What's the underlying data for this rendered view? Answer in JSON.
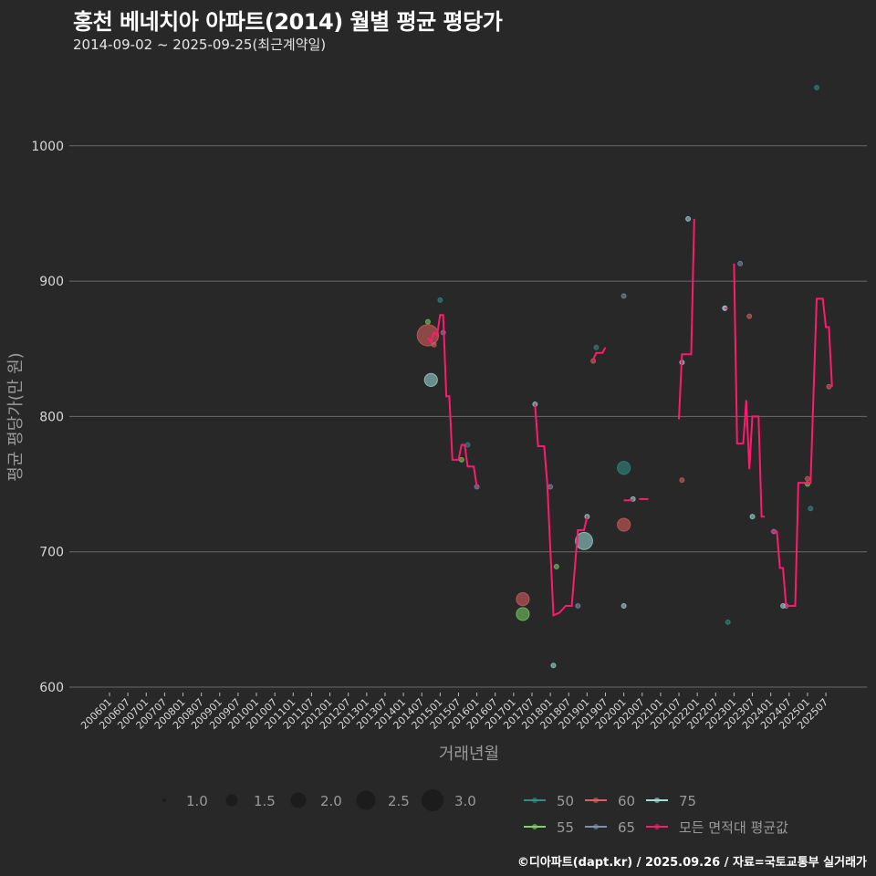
{
  "header": {
    "title": "홍천 베네치아 아파트(2014) 월별 평균 평당가",
    "subtitle": "2014-09-02 ~ 2025-09-25(최근계약일)"
  },
  "footer": {
    "credit": "©디아파트(dapt.kr) / 2025.09.26 / 자료=국토교통부 실거래가"
  },
  "colors": {
    "background": "#282828",
    "grid": "#6a6a6a",
    "area_50": "#2f8f86",
    "area_55": "#7ed36a",
    "area_60": "#e06060",
    "area_65": "#7f8fb0",
    "area_75": "#9fe0d8",
    "average_line": "#ff1a6e"
  },
  "chart_data": {
    "type": "line+scatter",
    "title": "홍천 베네치아 아파트(2014) 월별 평균 평당가",
    "subtitle": "2014-09-02 ~ 2025-09-25(최근계약일)",
    "xlabel": "거래년월",
    "ylabel": "평균 평당가(만 원)",
    "ylim": [
      590,
      1050
    ],
    "yticks": [
      600,
      700,
      800,
      900,
      1000
    ],
    "xticks": [
      "200601",
      "200607",
      "200701",
      "200707",
      "200801",
      "200807",
      "200901",
      "200907",
      "201001",
      "201007",
      "201101",
      "201107",
      "201201",
      "201207",
      "201301",
      "201307",
      "201401",
      "201407",
      "201501",
      "201507",
      "201601",
      "201607",
      "201701",
      "201707",
      "201801",
      "201807",
      "201901",
      "201907",
      "202001",
      "202007",
      "202101",
      "202107",
      "202201",
      "202207",
      "202301",
      "202307",
      "202401",
      "202407",
      "202501",
      "202507"
    ],
    "grid": true,
    "size_legend": {
      "title": "",
      "values": [
        1.0,
        1.5,
        2.0,
        2.5,
        3.0
      ]
    },
    "legend": [
      "50",
      "60",
      "75",
      "55",
      "65",
      "모든 면적대 평균값"
    ],
    "legend_position": "bottom",
    "series": [
      {
        "name": "50",
        "points": [
          {
            "x": "201501",
            "y": 886,
            "size": 1
          },
          {
            "x": "201510",
            "y": 779,
            "size": 1
          },
          {
            "x": "201904",
            "y": 851,
            "size": 1
          },
          {
            "x": "202001",
            "y": 762,
            "size": 2
          },
          {
            "x": "202211",
            "y": 648,
            "size": 1
          },
          {
            "x": "202502",
            "y": 732,
            "size": 1
          },
          {
            "x": "202504",
            "y": 1043,
            "size": 1
          }
        ]
      },
      {
        "name": "55",
        "points": [
          {
            "x": "201409",
            "y": 870,
            "size": 1
          },
          {
            "x": "201508",
            "y": 768,
            "size": 1
          },
          {
            "x": "201704",
            "y": 654,
            "size": 2
          },
          {
            "x": "201803",
            "y": 689,
            "size": 1
          },
          {
            "x": "202501",
            "y": 750,
            "size": 1
          }
        ]
      },
      {
        "name": "60",
        "points": [
          {
            "x": "201409",
            "y": 860,
            "size": 3
          },
          {
            "x": "201411",
            "y": 853,
            "size": 1
          },
          {
            "x": "201704",
            "y": 665,
            "size": 2
          },
          {
            "x": "201903",
            "y": 841,
            "size": 1
          },
          {
            "x": "202001",
            "y": 720,
            "size": 2
          },
          {
            "x": "202108",
            "y": 753,
            "size": 1
          },
          {
            "x": "202306",
            "y": 874,
            "size": 1
          },
          {
            "x": "202501",
            "y": 754,
            "size": 1
          },
          {
            "x": "202508",
            "y": 822,
            "size": 1
          }
        ]
      },
      {
        "name": "65",
        "points": [
          {
            "x": "201502",
            "y": 862,
            "size": 1
          },
          {
            "x": "201601",
            "y": 748,
            "size": 1
          },
          {
            "x": "201801",
            "y": 748,
            "size": 1
          },
          {
            "x": "201810",
            "y": 660,
            "size": 1
          },
          {
            "x": "202001",
            "y": 889,
            "size": 1
          },
          {
            "x": "202210",
            "y": 880,
            "size": 1
          },
          {
            "x": "202303",
            "y": 913,
            "size": 1
          },
          {
            "x": "202402",
            "y": 715,
            "size": 1
          },
          {
            "x": "202406",
            "y": 660,
            "size": 1
          }
        ]
      },
      {
        "name": "75",
        "points": [
          {
            "x": "201410",
            "y": 827,
            "size": 2
          },
          {
            "x": "201708",
            "y": 809,
            "size": 1
          },
          {
            "x": "201802",
            "y": 616,
            "size": 1
          },
          {
            "x": "201812",
            "y": 708,
            "size": 2.5
          },
          {
            "x": "201901",
            "y": 726,
            "size": 1
          },
          {
            "x": "202001",
            "y": 660,
            "size": 1
          },
          {
            "x": "202004",
            "y": 739,
            "size": 1
          },
          {
            "x": "202108",
            "y": 840,
            "size": 1
          },
          {
            "x": "202110",
            "y": 946,
            "size": 1
          },
          {
            "x": "202210",
            "y": 880,
            "size": 1
          },
          {
            "x": "202307",
            "y": 726,
            "size": 1
          },
          {
            "x": "202405",
            "y": 660,
            "size": 1
          }
        ]
      },
      {
        "name": "모든 면적대 평균값",
        "line_segments": [
          [
            [
              "201409",
              858
            ],
            [
              "201410",
              855
            ],
            [
              "201411",
              862
            ],
            [
              "201412",
              860
            ],
            [
              "201501",
              875
            ],
            [
              "201502",
              875
            ],
            [
              "201503",
              815
            ],
            [
              "201504",
              815
            ],
            [
              "201505",
              768
            ],
            [
              "201507",
              768
            ],
            [
              "201508",
              779
            ],
            [
              "201509",
              779
            ],
            [
              "201510",
              763
            ],
            [
              "201512",
              763
            ],
            [
              "201601",
              748
            ]
          ],
          [
            [
              "201708",
              809
            ],
            [
              "201709",
              778
            ],
            [
              "201711",
              778
            ],
            [
              "201712",
              750
            ],
            [
              "201802",
              653
            ],
            [
              "201804",
              655
            ],
            [
              "201806",
              660
            ],
            [
              "201808",
              660
            ],
            [
              "201810",
              716
            ],
            [
              "201812",
              716
            ],
            [
              "201901",
              726
            ]
          ],
          [
            [
              "201903",
              842
            ],
            [
              "201904",
              847
            ],
            [
              "201906",
              847
            ],
            [
              "201907",
              851
            ]
          ],
          [
            [
              "202001",
              738
            ],
            [
              "202004",
              738
            ]
          ],
          [
            [
              "202006",
              739
            ],
            [
              "202009",
              739
            ]
          ],
          [
            [
              "202107",
              798
            ],
            [
              "202108",
              846
            ],
            [
              "202111",
              846
            ],
            [
              "202112",
              946
            ]
          ],
          [
            [
              "202210",
              880
            ],
            [
              "202211",
              880
            ]
          ],
          [
            [
              "202301",
              913
            ],
            [
              "202302",
              780
            ],
            [
              "202304",
              780
            ],
            [
              "202305",
              812
            ],
            [
              "202306",
              761
            ],
            [
              "202307",
              800
            ],
            [
              "202309",
              800
            ],
            [
              "202310",
              726
            ],
            [
              "202311",
              726
            ]
          ],
          [
            [
              "202401",
              715
            ],
            [
              "202403",
              715
            ],
            [
              "202404",
              688
            ],
            [
              "202405",
              688
            ],
            [
              "202406",
              660
            ],
            [
              "202409",
              660
            ],
            [
              "202410",
              751
            ],
            [
              "202412",
              751
            ],
            [
              "202501",
              751
            ],
            [
              "202502",
              751
            ],
            [
              "202504",
              887
            ],
            [
              "202506",
              887
            ],
            [
              "202507",
              866
            ],
            [
              "202508",
              866
            ],
            [
              "202509",
              822
            ]
          ]
        ]
      }
    ]
  },
  "legend_labels": {
    "size": [
      "1.0",
      "1.5",
      "2.0",
      "2.5",
      "3.0"
    ],
    "area": [
      "50",
      "60",
      "75",
      "55",
      "65",
      "모든 면적대 평균값"
    ]
  }
}
